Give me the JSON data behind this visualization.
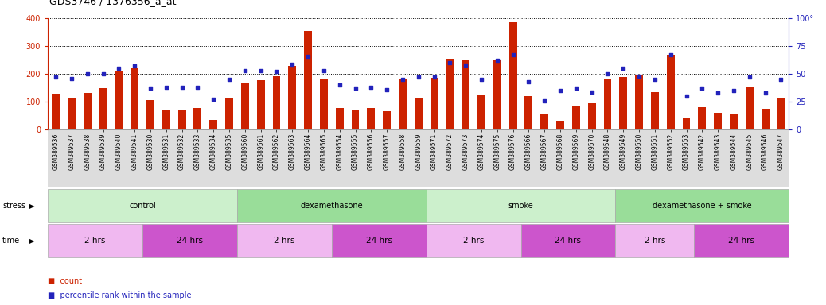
{
  "title": "GDS3746 / 1376356_a_at",
  "samples": [
    "GSM389536",
    "GSM389537",
    "GSM389538",
    "GSM389539",
    "GSM389540",
    "GSM389541",
    "GSM389530",
    "GSM389531",
    "GSM389532",
    "GSM389533",
    "GSM389534",
    "GSM389535",
    "GSM389560",
    "GSM389561",
    "GSM389562",
    "GSM389563",
    "GSM389564",
    "GSM389565",
    "GSM389554",
    "GSM389555",
    "GSM389556",
    "GSM389557",
    "GSM389558",
    "GSM389559",
    "GSM389571",
    "GSM389572",
    "GSM389573",
    "GSM389574",
    "GSM389575",
    "GSM389576",
    "GSM389566",
    "GSM389567",
    "GSM389568",
    "GSM389569",
    "GSM389570",
    "GSM389548",
    "GSM389549",
    "GSM389550",
    "GSM389551",
    "GSM389552",
    "GSM389553",
    "GSM389542",
    "GSM389543",
    "GSM389544",
    "GSM389545",
    "GSM389546",
    "GSM389547"
  ],
  "counts": [
    128,
    115,
    133,
    148,
    210,
    220,
    105,
    72,
    72,
    78,
    35,
    112,
    168,
    178,
    192,
    230,
    355,
    183,
    78,
    70,
    78,
    65,
    183,
    113,
    185,
    255,
    248,
    127,
    250,
    385,
    120,
    55,
    33,
    85,
    95,
    180,
    190,
    197,
    135,
    270,
    43,
    80,
    60,
    55,
    155,
    75,
    112
  ],
  "percentile": [
    47,
    46,
    50,
    50,
    55,
    57,
    37,
    38,
    38,
    38,
    27,
    45,
    53,
    53,
    52,
    59,
    66,
    53,
    40,
    37,
    38,
    36,
    45,
    47,
    47,
    60,
    58,
    45,
    62,
    67,
    43,
    26,
    35,
    37,
    34,
    50,
    55,
    48,
    45,
    67,
    30,
    37,
    33,
    35,
    47,
    33,
    45
  ],
  "bar_color": "#cc2200",
  "dot_color": "#2222bb",
  "left_ylim": [
    0,
    400
  ],
  "right_ylim": [
    0,
    100
  ],
  "left_yticks": [
    0,
    100,
    200,
    300,
    400
  ],
  "right_ytick_labels": [
    "0",
    "25",
    "50",
    "75",
    "100°"
  ],
  "right_yticks": [
    0,
    25,
    50,
    75,
    100
  ],
  "groups": [
    {
      "label": "control",
      "start": 0,
      "end": 12,
      "color": "#ccf0cc"
    },
    {
      "label": "dexamethasone",
      "start": 12,
      "end": 24,
      "color": "#99dd99"
    },
    {
      "label": "smoke",
      "start": 24,
      "end": 36,
      "color": "#ccf0cc"
    },
    {
      "label": "dexamethasone + smoke",
      "start": 36,
      "end": 47,
      "color": "#99dd99"
    }
  ],
  "time_groups": [
    {
      "label": "2 hrs",
      "start": 0,
      "end": 6,
      "color": "#f0b8f0"
    },
    {
      "label": "24 hrs",
      "start": 6,
      "end": 12,
      "color": "#cc55cc"
    },
    {
      "label": "2 hrs",
      "start": 12,
      "end": 18,
      "color": "#f0b8f0"
    },
    {
      "label": "24 hrs",
      "start": 18,
      "end": 24,
      "color": "#cc55cc"
    },
    {
      "label": "2 hrs",
      "start": 24,
      "end": 30,
      "color": "#f0b8f0"
    },
    {
      "label": "24 hrs",
      "start": 30,
      "end": 36,
      "color": "#cc55cc"
    },
    {
      "label": "2 hrs",
      "start": 36,
      "end": 41,
      "color": "#f0b8f0"
    },
    {
      "label": "24 hrs",
      "start": 41,
      "end": 47,
      "color": "#cc55cc"
    }
  ],
  "stress_label": "stress",
  "time_label": "time",
  "legend_count": "count",
  "legend_percentile": "percentile rank within the sample",
  "background_color": "#ffffff",
  "tick_label_fontsize": 5.5,
  "title_fontsize": 9,
  "dot_size": 12,
  "n_samples": 47,
  "xtick_bg_color": "#dddddd",
  "bar_width": 0.5
}
